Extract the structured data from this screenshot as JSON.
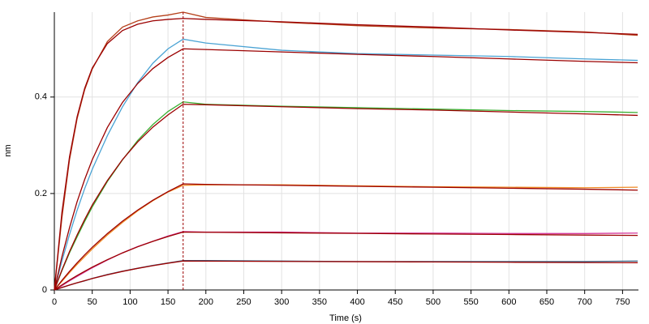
{
  "chart_data": {
    "type": "line",
    "xlabel": "Time (s)",
    "ylabel": "nm",
    "x": [
      0,
      10,
      20,
      30,
      40,
      50,
      70,
      90,
      110,
      130,
      150,
      170,
      200,
      300,
      400,
      500,
      600,
      700,
      770
    ],
    "series": [
      {
        "color": "#3b6a8c",
        "values": [
          0,
          0.005,
          0.01,
          0.015,
          0.019,
          0.024,
          0.032,
          0.039,
          0.045,
          0.051,
          0.056,
          0.061,
          0.061,
          0.06,
          0.059,
          0.059,
          0.059,
          0.059,
          0.06
        ]
      },
      {
        "color": "#d53a9d",
        "values": [
          0,
          0.009,
          0.019,
          0.028,
          0.037,
          0.046,
          0.062,
          0.077,
          0.09,
          0.101,
          0.112,
          0.121,
          0.12,
          0.12,
          0.118,
          0.118,
          0.117,
          0.117,
          0.118
        ]
      },
      {
        "color": "#f08a24",
        "values": [
          0,
          0.018,
          0.036,
          0.053,
          0.069,
          0.085,
          0.114,
          0.14,
          0.164,
          0.185,
          0.203,
          0.217,
          0.218,
          0.218,
          0.216,
          0.214,
          0.213,
          0.212,
          0.213
        ]
      },
      {
        "color": "#3cb034",
        "values": [
          0,
          0.04,
          0.077,
          0.11,
          0.142,
          0.172,
          0.225,
          0.27,
          0.31,
          0.343,
          0.37,
          0.39,
          0.385,
          0.381,
          0.378,
          0.375,
          0.372,
          0.37,
          0.368
        ]
      },
      {
        "color": "#4aa3d4",
        "values": [
          0,
          0.06,
          0.115,
          0.165,
          0.21,
          0.25,
          0.32,
          0.38,
          0.43,
          0.47,
          0.5,
          0.52,
          0.512,
          0.497,
          0.49,
          0.487,
          0.484,
          0.479,
          0.476
        ]
      },
      {
        "color": "#b5401a",
        "values": [
          0,
          0.15,
          0.27,
          0.355,
          0.415,
          0.458,
          0.515,
          0.545,
          0.558,
          0.566,
          0.57,
          0.576,
          0.565,
          0.555,
          0.548,
          0.543,
          0.54,
          0.535,
          0.528
        ]
      },
      {
        "color": "#9b0000",
        "values": [
          0,
          0.0053,
          0.0103,
          0.015,
          0.0194,
          0.0237,
          0.0315,
          0.0385,
          0.0448,
          0.0504,
          0.0555,
          0.06,
          0.0598,
          0.0592,
          0.0587,
          0.0581,
          0.0575,
          0.0569,
          0.0566
        ]
      },
      {
        "color": "#9b0000",
        "values": [
          0,
          0.0105,
          0.0205,
          0.0299,
          0.0388,
          0.0473,
          0.0629,
          0.0769,
          0.0895,
          0.1008,
          0.1109,
          0.12,
          0.1196,
          0.1185,
          0.1173,
          0.1161,
          0.115,
          0.1139,
          0.1131
        ]
      },
      {
        "color": "#9b0000",
        "values": [
          0,
          0.0198,
          0.0385,
          0.0561,
          0.0728,
          0.0885,
          0.117,
          0.1428,
          0.1656,
          0.186,
          0.204,
          0.22,
          0.219,
          0.217,
          0.215,
          0.213,
          0.211,
          0.209,
          0.207
        ]
      },
      {
        "color": "#9b0000",
        "values": [
          0,
          0.0415,
          0.0795,
          0.114,
          0.146,
          0.176,
          0.227,
          0.2705,
          0.307,
          0.3376,
          0.363,
          0.385,
          0.384,
          0.38,
          0.376,
          0.373,
          0.369,
          0.365,
          0.362
        ]
      },
      {
        "color": "#9b0000",
        "values": [
          0,
          0.069,
          0.129,
          0.183,
          0.229,
          0.27,
          0.337,
          0.389,
          0.428,
          0.459,
          0.482,
          0.5,
          0.4985,
          0.4935,
          0.4885,
          0.484,
          0.479,
          0.474,
          0.471
        ]
      },
      {
        "color": "#9b0000",
        "values": [
          0,
          0.161,
          0.276,
          0.359,
          0.418,
          0.46,
          0.511,
          0.538,
          0.551,
          0.558,
          0.561,
          0.563,
          0.561,
          0.556,
          0.55,
          0.545,
          0.539,
          0.534,
          0.53
        ]
      }
    ],
    "vlines": [
      170
    ],
    "vline_color": "#9b0000",
    "xlim": [
      0,
      771
    ],
    "ylim": [
      0,
      0.576
    ],
    "xticks": [
      0,
      50,
      100,
      150,
      200,
      250,
      300,
      350,
      400,
      450,
      500,
      550,
      600,
      650,
      700,
      750
    ],
    "yticks": [
      0,
      0.2,
      0.4
    ],
    "grid": true
  }
}
